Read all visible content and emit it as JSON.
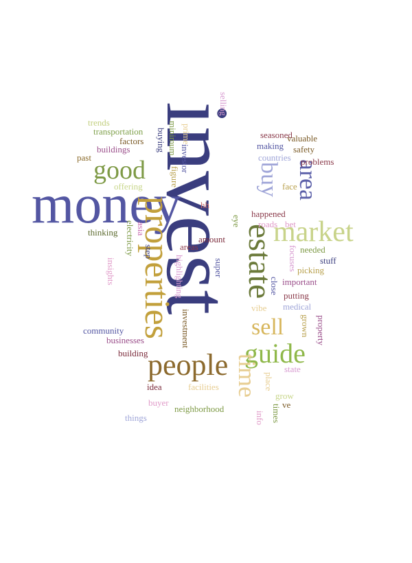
{
  "words": [
    {
      "text": "invest",
      "color": "#3a3d7e"
    },
    {
      "text": "money",
      "color": "#5356a2"
    },
    {
      "text": "properties",
      "color": "#c2a03c"
    },
    {
      "text": "estate",
      "color": "#6b7a3a"
    },
    {
      "text": "market",
      "color": "#c8d38a"
    },
    {
      "text": "people",
      "color": "#8c6a2e"
    },
    {
      "text": "guide",
      "color": "#8fb84a"
    },
    {
      "text": "good",
      "color": "#7e9a46"
    },
    {
      "text": "area",
      "color": "#5b5fa8"
    },
    {
      "text": "buy",
      "color": "#9fa5d8"
    },
    {
      "text": "sell",
      "color": "#d7b65c"
    },
    {
      "text": "time",
      "color": "#e7cd91"
    },
    {
      "text": "trends",
      "color": "#c2cf7f"
    },
    {
      "text": "transportation",
      "color": "#7fa04b"
    },
    {
      "text": "factors",
      "color": "#7a5a26"
    },
    {
      "text": "buildings",
      "color": "#9a4e8a"
    },
    {
      "text": "past",
      "color": "#8a6a2a"
    },
    {
      "text": "offering",
      "color": "#c8d68a"
    },
    {
      "text": "selling",
      "color": "#d79ad0"
    },
    {
      "text": "seasoned",
      "color": "#8a3a4a"
    },
    {
      "text": "valuable",
      "color": "#7a5a26"
    },
    {
      "text": "making",
      "color": "#5356a2"
    },
    {
      "text": "safety",
      "color": "#7a5a26"
    },
    {
      "text": "countries",
      "color": "#9fa5d8"
    },
    {
      "text": "problems",
      "color": "#8a3a4a"
    },
    {
      "text": "face",
      "color": "#b8a04c"
    },
    {
      "text": "buying",
      "color": "#3a3d7e"
    },
    {
      "text": "minimum",
      "color": "#7e9a46"
    },
    {
      "text": "prime",
      "color": "#e7cd91"
    },
    {
      "text": "investor",
      "color": "#5356a2"
    },
    {
      "text": "figure",
      "color": "#b8a04c"
    },
    {
      "text": "hh",
      "color": "#c86a6a"
    },
    {
      "text": "eye",
      "color": "#7e9a46"
    },
    {
      "text": "happened",
      "color": "#8a3a4a"
    },
    {
      "text": "roads",
      "color": "#e09ac8"
    },
    {
      "text": "bet",
      "color": "#e09ac8"
    },
    {
      "text": "thinking",
      "color": "#5b6a2e"
    },
    {
      "text": "asia",
      "color": "#c86ab0"
    },
    {
      "text": "electricity",
      "color": "#7e9a46"
    },
    {
      "text": "step",
      "color": "#3a3d7e"
    },
    {
      "text": "areas",
      "color": "#8a3a4a"
    },
    {
      "text": "amount",
      "color": "#7a2a3a"
    },
    {
      "text": "super",
      "color": "#5356a2"
    },
    {
      "text": "focuses",
      "color": "#d79ad0"
    },
    {
      "text": "needed",
      "color": "#7e9a46"
    },
    {
      "text": "stuff",
      "color": "#3a3d7e"
    },
    {
      "text": "picking",
      "color": "#b8a04c"
    },
    {
      "text": "important",
      "color": "#9a4e8a"
    },
    {
      "text": "insights",
      "color": "#e09ac8"
    },
    {
      "text": "highlighting",
      "color": "#d79ad0"
    },
    {
      "text": "close",
      "color": "#5356a2"
    },
    {
      "text": "putting",
      "color": "#8a3a4a"
    },
    {
      "text": "vibe",
      "color": "#e7cd91"
    },
    {
      "text": "medical",
      "color": "#9fa5d8"
    },
    {
      "text": "investment",
      "color": "#7a5a26"
    },
    {
      "text": "grown",
      "color": "#b8a04c"
    },
    {
      "text": "property",
      "color": "#9a4e8a"
    },
    {
      "text": "community",
      "color": "#5356a2"
    },
    {
      "text": "businesses",
      "color": "#9a4e8a"
    },
    {
      "text": "building",
      "color": "#7a2a3a"
    },
    {
      "text": "state",
      "color": "#d79ad0"
    },
    {
      "text": "idea",
      "color": "#7a2a3a"
    },
    {
      "text": "facilities",
      "color": "#e7cd91"
    },
    {
      "text": "place",
      "color": "#e7cd91"
    },
    {
      "text": "grow",
      "color": "#c8d68a"
    },
    {
      "text": "ve",
      "color": "#7a5a26"
    },
    {
      "text": "times",
      "color": "#7e9a46"
    },
    {
      "text": "buyer",
      "color": "#e09ac8"
    },
    {
      "text": "neighborhood",
      "color": "#7e9a46"
    },
    {
      "text": "info",
      "color": "#e09ac8"
    },
    {
      "text": "things",
      "color": "#9fa5d8"
    }
  ]
}
